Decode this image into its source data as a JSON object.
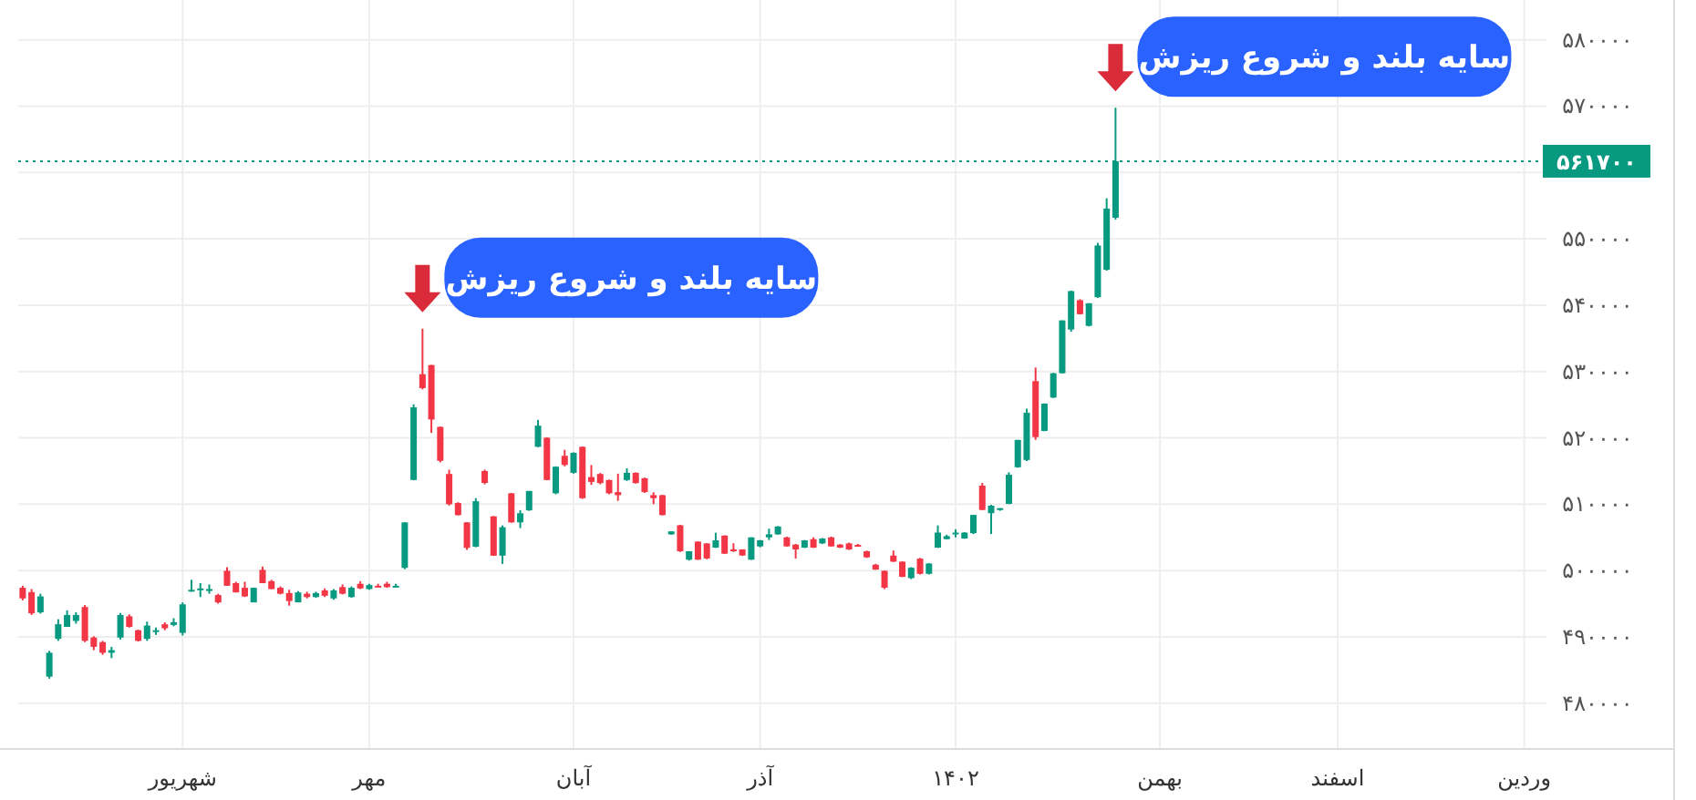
{
  "chart_data": {
    "type": "candlestick",
    "categories": [
      null,
      null,
      null,
      null,
      null,
      null,
      null,
      null,
      null,
      null,
      null,
      null,
      null,
      null,
      null,
      null,
      null,
      null,
      "شهریور",
      null,
      null,
      null,
      null,
      null,
      null,
      null,
      null,
      null,
      null,
      null,
      null,
      null,
      null,
      null,
      null,
      null,
      null,
      null,
      null,
      "مهر",
      null,
      null,
      null,
      null,
      null,
      null,
      null,
      null,
      null,
      null,
      null,
      null,
      null,
      null,
      null,
      null,
      null,
      null,
      null,
      null,
      null,
      null,
      "آبان",
      null,
      null,
      null,
      null,
      null,
      null,
      null,
      null,
      null,
      null,
      null,
      null,
      null,
      null,
      null,
      null,
      null,
      null,
      null,
      null,
      "آذر",
      null,
      null,
      null,
      null,
      null,
      null,
      null,
      null,
      null,
      null,
      null,
      null,
      null,
      null,
      null,
      null,
      null,
      null,
      null,
      null,
      null,
      "۱۴۰۲",
      null,
      null,
      null,
      null,
      null,
      null,
      null,
      null,
      null,
      null,
      null,
      null,
      null,
      null,
      null,
      null,
      null,
      null,
      null,
      null,
      null,
      null,
      "بهمن",
      null,
      null,
      null,
      null,
      null,
      null,
      null,
      null,
      null,
      null,
      null,
      null,
      null,
      null,
      null,
      null,
      null,
      null,
      null,
      "اسفند",
      null,
      null,
      null,
      null,
      null,
      null,
      null,
      null,
      null,
      null,
      null,
      null,
      null,
      null,
      null,
      null,
      null,
      null,
      null,
      null,
      "وردین",
      null,
      null
    ],
    "ohlc": [
      [
        497400,
        497700,
        495500,
        495800
      ],
      [
        496750,
        497200,
        493300,
        493550
      ],
      [
        493700,
        496500,
        493500,
        496100
      ],
      [
        484000,
        487900,
        483700,
        487600
      ],
      [
        489700,
        492650,
        489400,
        491900
      ],
      [
        491500,
        494000,
        491500,
        493300
      ],
      [
        492400,
        493700,
        492000,
        493300
      ],
      [
        494500,
        494800,
        489200,
        489400
      ],
      [
        489900,
        490100,
        488000,
        488500
      ],
      [
        489200,
        489400,
        487300,
        487600
      ],
      [
        487600,
        488500,
        486800,
        488000
      ],
      [
        489900,
        493600,
        489600,
        493300
      ],
      [
        493100,
        493400,
        491400,
        491500
      ],
      [
        491000,
        491100,
        489300,
        489400
      ],
      [
        489700,
        492300,
        489400,
        491700
      ],
      [
        490800,
        491400,
        490300,
        491000
      ],
      [
        491900,
        492200,
        491000,
        491300
      ],
      [
        491800,
        492800,
        491600,
        492200
      ],
      [
        490600,
        495200,
        490200,
        494900
      ],
      [
        497000,
        498600,
        496800,
        497100
      ],
      [
        497200,
        498100,
        496000,
        497300
      ],
      [
        497100,
        497900,
        496500,
        497200
      ],
      [
        496300,
        496500,
        495000,
        495200
      ],
      [
        499960,
        500500,
        497700,
        497700
      ],
      [
        498100,
        498300,
        496700,
        496700
      ],
      [
        497400,
        498300,
        496000,
        496100
      ],
      [
        495200,
        497400,
        495200,
        497400
      ],
      [
        500100,
        500600,
        498100,
        498100
      ],
      [
        498400,
        498600,
        497200,
        497200
      ],
      [
        497400,
        497600,
        496400,
        496500
      ],
      [
        496600,
        497100,
        494700,
        495400
      ],
      [
        495200,
        496900,
        495200,
        496700
      ],
      [
        496500,
        496800,
        495800,
        496000
      ],
      [
        496000,
        496800,
        495900,
        496600
      ],
      [
        497000,
        497300,
        496000,
        496200
      ],
      [
        495800,
        497200,
        495600,
        497000
      ],
      [
        497500,
        497900,
        496400,
        496500
      ],
      [
        496000,
        497600,
        495900,
        497400
      ],
      [
        498000,
        498400,
        497200,
        497300
      ],
      [
        497200,
        498000,
        497100,
        497800
      ],
      [
        497700,
        498000,
        497500,
        497600
      ],
      [
        498000,
        498300,
        497400,
        497500
      ],
      [
        497600,
        498000,
        497500,
        497700
      ],
      [
        500400,
        507300,
        500200,
        507250
      ],
      [
        513650,
        525050,
        513600,
        524600
      ],
      [
        529600,
        536450,
        527300,
        527500
      ],
      [
        530970,
        531000,
        520750,
        522760
      ],
      [
        521650,
        521700,
        516300,
        516540
      ],
      [
        514550,
        515200,
        509800,
        510000
      ],
      [
        510180,
        510300,
        508300,
        508350
      ],
      [
        507260,
        507300,
        503100,
        503420
      ],
      [
        503600,
        510900,
        503500,
        510450
      ],
      [
        515000,
        515200,
        513000,
        513200
      ],
      [
        508170,
        508200,
        502200,
        502240
      ],
      [
        502240,
        506800,
        501000,
        506530
      ],
      [
        511640,
        511700,
        507200,
        507260
      ],
      [
        507260,
        509100,
        506400,
        508630
      ],
      [
        509070,
        512000,
        509000,
        511990
      ],
      [
        518650,
        522700,
        518600,
        521840
      ],
      [
        520010,
        520100,
        513600,
        513640
      ],
      [
        511640,
        515700,
        511500,
        515650
      ],
      [
        517290,
        518200,
        515700,
        515920
      ],
      [
        514730,
        517800,
        514600,
        517750
      ],
      [
        518650,
        518700,
        510800,
        510900
      ],
      [
        514090,
        515900,
        512900,
        513360
      ],
      [
        514550,
        514700,
        513000,
        513180
      ],
      [
        513640,
        513700,
        511500,
        511640
      ],
      [
        511820,
        514600,
        510500,
        511360
      ],
      [
        513640,
        515400,
        513500,
        514730
      ],
      [
        514730,
        514800,
        513100,
        513180
      ],
      [
        513910,
        514000,
        511700,
        511820
      ],
      [
        511360,
        511800,
        510000,
        510910
      ],
      [
        511360,
        511400,
        508300,
        508360
      ],
      [
        505450,
        505900,
        505400,
        505900
      ],
      [
        506820,
        506900,
        502800,
        502910
      ],
      [
        501640,
        502910,
        501500,
        502910
      ],
      [
        504360,
        504400,
        501600,
        501640
      ],
      [
        504090,
        504100,
        501700,
        501820
      ],
      [
        503450,
        505700,
        503400,
        504550
      ],
      [
        505270,
        505300,
        502500,
        502540
      ],
      [
        503180,
        504100,
        502800,
        502910
      ],
      [
        503180,
        503200,
        502200,
        502270
      ],
      [
        501640,
        505000,
        501600,
        505000
      ],
      [
        503640,
        504600,
        503500,
        504550
      ],
      [
        505000,
        506300,
        504600,
        505450
      ],
      [
        505450,
        506700,
        505400,
        506640
      ],
      [
        505000,
        505100,
        503600,
        503640
      ],
      [
        503910,
        504000,
        501800,
        503180
      ],
      [
        503450,
        504600,
        503400,
        504550
      ],
      [
        504730,
        505000,
        503400,
        503450
      ],
      [
        504090,
        504900,
        504000,
        504820
      ],
      [
        505000,
        505100,
        503600,
        503640
      ],
      [
        503910,
        504000,
        503400,
        503450
      ],
      [
        504090,
        504200,
        503100,
        503180
      ],
      [
        503860,
        504000,
        503600,
        503680
      ],
      [
        502900,
        503000,
        501900,
        501990
      ],
      [
        500880,
        501000,
        500100,
        500150
      ],
      [
        499960,
        500000,
        497200,
        497400
      ],
      [
        502250,
        503000,
        501300,
        501330
      ],
      [
        501330,
        501400,
        499000,
        499050
      ],
      [
        498860,
        500500,
        498700,
        500420
      ],
      [
        501790,
        501900,
        499400,
        499500
      ],
      [
        499500,
        501100,
        499400,
        501060
      ],
      [
        503450,
        506800,
        503400,
        505720
      ],
      [
        504730,
        505400,
        504700,
        505180
      ],
      [
        505450,
        506200,
        505000,
        505720
      ],
      [
        504820,
        505800,
        504800,
        505720
      ],
      [
        505630,
        508400,
        505500,
        508380
      ],
      [
        512790,
        513200,
        509100,
        509130
      ],
      [
        508650,
        509900,
        505500,
        509770
      ],
      [
        509130,
        509400,
        509000,
        509400
      ],
      [
        510040,
        514800,
        510000,
        514430
      ],
      [
        515560,
        519700,
        515500,
        519680
      ],
      [
        516660,
        524400,
        516500,
        523790
      ],
      [
        528550,
        530600,
        519700,
        520120
      ],
      [
        521040,
        525200,
        521000,
        525160
      ],
      [
        526070,
        529800,
        526000,
        529740
      ],
      [
        529740,
        537700,
        529700,
        537700
      ],
      [
        536330,
        542200,
        536000,
        542120
      ],
      [
        540750,
        540900,
        538600,
        538640
      ],
      [
        536880,
        540300,
        536800,
        540290
      ],
      [
        541200,
        549400,
        541100,
        548990
      ],
      [
        545330,
        556100,
        545200,
        554560
      ],
      [
        553180,
        569760,
        552900,
        561700
      ],
      null,
      null,
      null,
      null,
      null,
      null,
      null,
      null,
      null,
      null,
      null,
      null,
      null,
      null,
      null,
      null,
      null,
      null,
      null,
      null,
      null,
      null,
      null,
      null,
      null,
      null,
      null,
      null,
      null,
      null,
      null,
      null,
      null,
      null,
      null,
      null,
      null,
      null,
      null,
      null,
      null,
      null,
      null,
      null,
      null,
      null,
      null,
      null
    ],
    "ylim": [
      473100,
      586000
    ],
    "yticks": [
      {
        "value": 480000,
        "label": "۴۸۰۰۰۰"
      },
      {
        "value": 490000,
        "label": "۴۹۰۰۰۰"
      },
      {
        "value": 500000,
        "label": "۵۰۰۰۰۰"
      },
      {
        "value": 510000,
        "label": "۵۱۰۰۰۰"
      },
      {
        "value": 520000,
        "label": "۵۲۰۰۰۰"
      },
      {
        "value": 530000,
        "label": "۵۳۰۰۰۰"
      },
      {
        "value": 540000,
        "label": "۵۴۰۰۰۰"
      },
      {
        "value": 550000,
        "label": "۵۵۰۰۰۰"
      },
      {
        "value": 560000,
        "label": null
      },
      {
        "value": 570000,
        "label": "۵۷۰۰۰۰"
      },
      {
        "value": 580000,
        "label": "۵۸۰۰۰۰"
      }
    ],
    "grid": true,
    "ref_lines": [
      {
        "axis": "y",
        "value": 561700,
        "label": "۵۶۱۷۰۰",
        "color": "#089981",
        "line_style": "dotted"
      }
    ],
    "annotations": [
      "سایه بلند و شروع ریزش",
      "سایه بلند و شروع ریزش"
    ]
  }
}
